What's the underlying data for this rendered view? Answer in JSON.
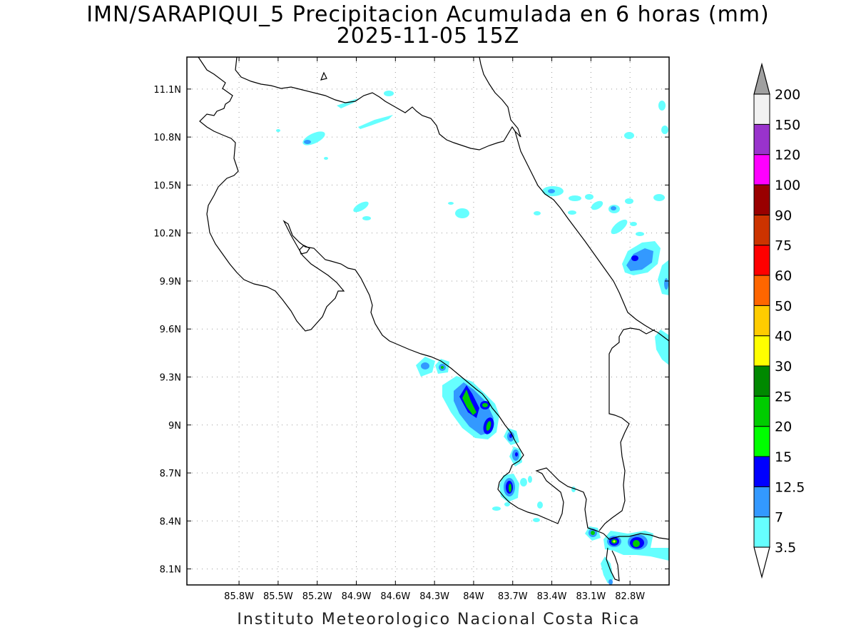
{
  "header": {
    "title": "IMN/SARAPIQUI_5 Precipitacion Acumulada en 6 horas (mm)",
    "subtitle": "2025-11-05 15Z"
  },
  "footer": {
    "credit": "Instituto Meteorologico Nacional Costa Rica"
  },
  "map": {
    "lon_range": [
      -86.2,
      -82.5
    ],
    "lat_range": [
      8.0,
      11.3
    ],
    "lon_ticks": [
      "85.8W",
      "85.5W",
      "85.2W",
      "84.9W",
      "84.6W",
      "84.3W",
      "84W",
      "83.7W",
      "83.4W",
      "83.1W",
      "82.8W"
    ],
    "lat_ticks": [
      "11.1N",
      "10.8N",
      "10.5N",
      "10.2N",
      "9.9N",
      "9.6N",
      "9.3N",
      "9N",
      "8.7N",
      "8.4N",
      "8.1N"
    ],
    "grid": true
  },
  "colorbar": {
    "labels": [
      "3.5",
      "7",
      "12.5",
      "15",
      "20",
      "25",
      "30",
      "40",
      "50",
      "60",
      "75",
      "90",
      "100",
      "120",
      "150",
      "200"
    ],
    "colors": [
      "#66ffff",
      "#3399ff",
      "#0000ff",
      "#00ff00",
      "#00cc00",
      "#008800",
      "#ffff00",
      "#ffcc00",
      "#ff6600",
      "#ff0000",
      "#cc3300",
      "#990000",
      "#ff00ff",
      "#9933cc",
      "#f2f2f2"
    ],
    "upper_arrow_color": "#a0a0a0",
    "lower_arrow_color": "#ffffff"
  }
}
